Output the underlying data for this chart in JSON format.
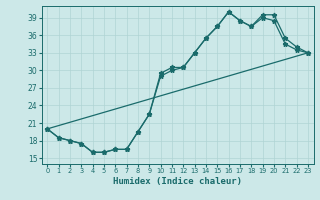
{
  "title": "",
  "xlabel": "Humidex (Indice chaleur)",
  "bg_color": "#cce8e8",
  "grid_color": "#b0d4d4",
  "line_color": "#1a6b6b",
  "xlim": [
    -0.5,
    23.5
  ],
  "ylim": [
    14.0,
    41.0
  ],
  "xticks": [
    0,
    1,
    2,
    3,
    4,
    5,
    6,
    7,
    8,
    9,
    10,
    11,
    12,
    13,
    14,
    15,
    16,
    17,
    18,
    19,
    20,
    21,
    22,
    23
  ],
  "yticks": [
    15,
    18,
    21,
    24,
    27,
    30,
    33,
    36,
    39
  ],
  "series1_x": [
    0,
    1,
    2,
    3,
    4,
    5,
    6,
    7,
    8,
    9,
    10,
    11,
    12,
    13,
    14,
    15,
    16,
    17,
    18,
    19,
    20,
    21,
    22,
    23
  ],
  "series1_y": [
    20.0,
    18.5,
    18.0,
    17.5,
    16.0,
    16.0,
    16.5,
    16.5,
    19.5,
    22.5,
    29.5,
    30.5,
    30.5,
    33.0,
    35.5,
    37.5,
    40.0,
    38.5,
    37.5,
    39.5,
    39.5,
    35.5,
    34.0,
    33.0
  ],
  "series2_x": [
    0,
    1,
    2,
    3,
    4,
    5,
    6,
    7,
    8,
    9,
    10,
    11,
    12,
    13,
    14,
    15,
    16,
    17,
    18,
    19,
    20,
    21,
    22,
    23
  ],
  "series2_y": [
    20.0,
    18.5,
    18.0,
    17.5,
    16.0,
    16.0,
    16.5,
    16.5,
    19.5,
    22.5,
    29.0,
    30.0,
    30.5,
    33.0,
    35.5,
    37.5,
    40.0,
    38.5,
    37.5,
    39.0,
    38.5,
    34.5,
    33.5,
    33.0
  ],
  "series3_x": [
    0,
    23
  ],
  "series3_y": [
    20.0,
    33.0
  ],
  "marker": "*",
  "markersize": 3.5,
  "linewidth": 0.9
}
